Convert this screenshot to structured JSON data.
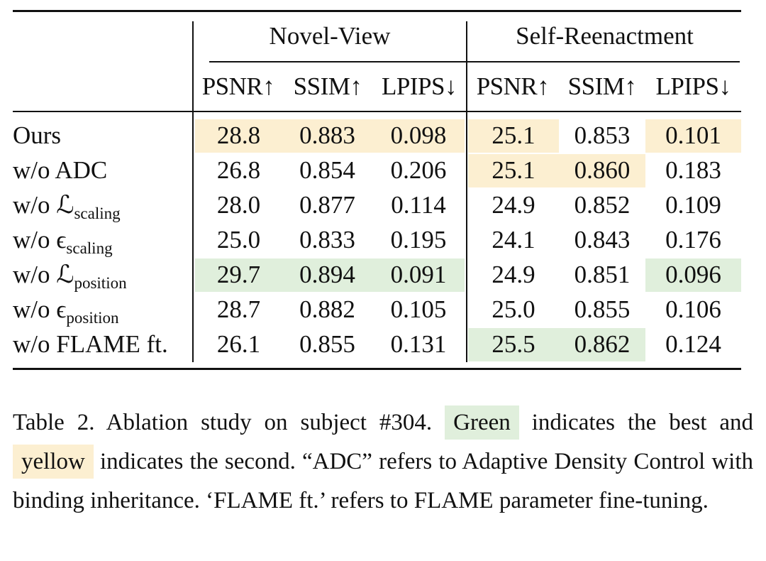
{
  "table": {
    "groups": [
      "Novel-View",
      "Self-Reenactment"
    ],
    "columns": [
      "PSNR↑",
      "SSIM↑",
      "LPIPS↓",
      "PSNR↑",
      "SSIM↑",
      "LPIPS↓"
    ],
    "colors": {
      "best": "#e0efdc",
      "second": "#fcefd1"
    },
    "rows": [
      {
        "label": "Ours",
        "cells": [
          "28.8",
          "0.883",
          "0.098",
          "25.1",
          "0.853",
          "0.101"
        ],
        "highlight": [
          "second",
          "second",
          "second",
          "second",
          null,
          "second"
        ]
      },
      {
        "label": "w/o ADC",
        "cells": [
          "26.8",
          "0.854",
          "0.206",
          "25.1",
          "0.860",
          "0.183"
        ],
        "highlight": [
          null,
          null,
          null,
          "second",
          "second",
          null
        ]
      },
      {
        "label": "w/o ℒ",
        "subscript": "scaling",
        "cells": [
          "28.0",
          "0.877",
          "0.114",
          "24.9",
          "0.852",
          "0.109"
        ],
        "highlight": [
          null,
          null,
          null,
          null,
          null,
          null
        ]
      },
      {
        "label": "w/o ϵ",
        "subscript": "scaling",
        "cells": [
          "25.0",
          "0.833",
          "0.195",
          "24.1",
          "0.843",
          "0.176"
        ],
        "highlight": [
          null,
          null,
          null,
          null,
          null,
          null
        ]
      },
      {
        "label": "w/o ℒ",
        "subscript": "position",
        "cells": [
          "29.7",
          "0.894",
          "0.091",
          "24.9",
          "0.851",
          "0.096"
        ],
        "highlight": [
          "best",
          "best",
          "best",
          null,
          null,
          "best"
        ]
      },
      {
        "label": "w/o ϵ",
        "subscript": "position",
        "cells": [
          "28.7",
          "0.882",
          "0.105",
          "25.0",
          "0.855",
          "0.106"
        ],
        "highlight": [
          null,
          null,
          null,
          null,
          null,
          null
        ]
      },
      {
        "label": "w/o FLAME ft.",
        "cells": [
          "26.1",
          "0.855",
          "0.131",
          "25.5",
          "0.862",
          "0.124"
        ],
        "highlight": [
          null,
          null,
          null,
          "best",
          "best",
          null
        ]
      }
    ]
  },
  "caption": {
    "text_1": "Table 2.  Ablation study on subject #304.",
    "green": "Green",
    "text_2": "indicates the best and",
    "yellow": "yellow",
    "text_3": "indicates the second. “ADC” refers to Adaptive Density Control with binding inheritance. ‘FLAME ft.’ refers to FLAME parameter fine-tuning."
  }
}
